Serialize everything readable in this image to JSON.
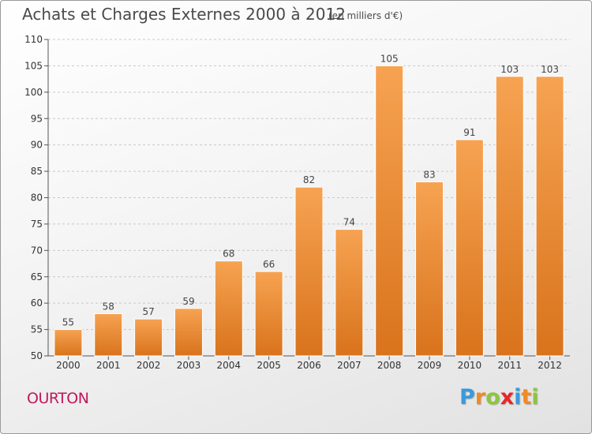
{
  "header": {
    "title": "Achats et Charges Externes 2000 à 2012",
    "subtitle": "(en milliers d'€)"
  },
  "footer": {
    "city": "OURTON",
    "logo": {
      "letters": [
        "P",
        "r",
        "o",
        "x",
        "i",
        "t",
        "i"
      ],
      "colors": [
        "#3a9ad9",
        "#f08a24",
        "#8cc63f",
        "#e8262b",
        "#3a9ad9",
        "#f08a24",
        "#8cc63f"
      ]
    }
  },
  "chart_data": {
    "type": "bar",
    "categories": [
      "2000",
      "2001",
      "2002",
      "2003",
      "2004",
      "2005",
      "2006",
      "2007",
      "2008",
      "2009",
      "2010",
      "2011",
      "2012"
    ],
    "series": [
      {
        "values": [
          55,
          58,
          57,
          59,
          68,
          66,
          82,
          74,
          105,
          83,
          91,
          103,
          103
        ]
      }
    ],
    "ylim": [
      50,
      110
    ],
    "yticks": [
      50,
      55,
      60,
      65,
      70,
      75,
      80,
      85,
      90,
      95,
      100,
      105,
      110
    ],
    "grid": true,
    "bar_color_top": "#f6a352",
    "bar_color_bottom": "#d9731c"
  }
}
